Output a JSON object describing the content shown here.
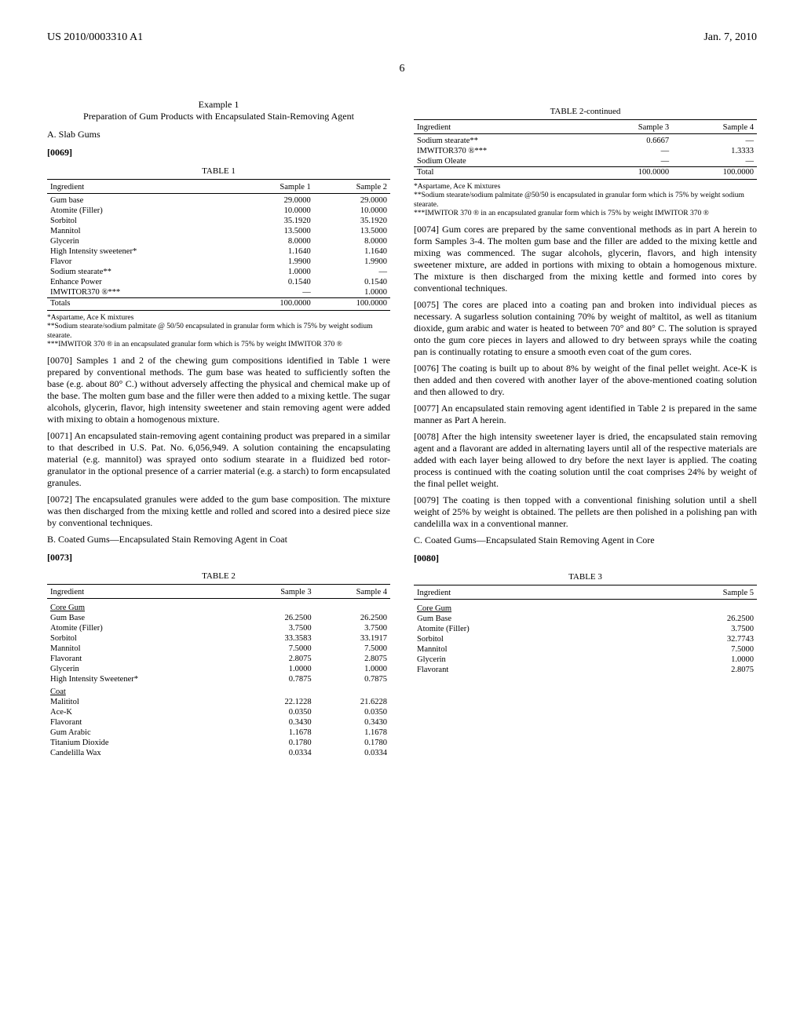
{
  "header": {
    "left": "US 2010/0003310 A1",
    "right": "Jan. 7, 2010"
  },
  "pagenum": "6",
  "col1": {
    "example_num": "Example 1",
    "example_title": "Preparation of Gum Products with Encapsulated Stain-Removing Agent",
    "sectionA": "A. Slab Gums",
    "p0069": "[0069]",
    "table1": {
      "caption": "TABLE 1",
      "head": [
        "Ingredient",
        "Sample 1",
        "Sample 2"
      ],
      "rows": [
        [
          "Gum base",
          "29.0000",
          "29.0000"
        ],
        [
          "Atomite (Filler)",
          "10.0000",
          "10.0000"
        ],
        [
          "Sorbitol",
          "35.1920",
          "35.1920"
        ],
        [
          "Mannitol",
          "13.5000",
          "13.5000"
        ],
        [
          "Glycerin",
          "8.0000",
          "8.0000"
        ],
        [
          "High Intensity sweetener*",
          "1.1640",
          "1.1640"
        ],
        [
          "Flavor",
          "1.9900",
          "1.9900"
        ],
        [
          "Sodium stearate**",
          "1.0000",
          "—"
        ],
        [
          "Enhance Power",
          "0.1540",
          "0.1540"
        ],
        [
          "IMWITOR370 ®***",
          "—",
          "1.0000"
        ]
      ],
      "total": [
        "Totals",
        "100.0000",
        "100.0000"
      ],
      "fn1": "*Aspartame, Ace K mixtures",
      "fn2": "**Sodium stearate/sodium palmitate @ 50/50 encapsulated in granular form which is 75% by weight sodium stearate.",
      "fn3": "***IMWITOR 370 ® in an encapsulated granular form which is 75% by weight IMWITOR 370 ®"
    },
    "p0070": "[0070]   Samples 1 and 2 of the chewing gum compositions identified in Table 1 were prepared by conventional methods. The gum base was heated to sufficiently soften the base (e.g. about 80° C.) without adversely affecting the physical and chemical make up of the base. The molten gum base and the filler were then added to a mixing kettle. The sugar alcohols, glycerin, flavor, high intensity sweetener and stain removing agent were added with mixing to obtain a homogenous mixture.",
    "p0071": "[0071]   An encapsulated stain-removing agent containing product was prepared in a similar to that described in U.S. Pat. No. 6,056,949. A solution containing the encapsulating material (e.g. mannitol) was sprayed onto sodium stearate in a fluidized bed rotor-granulator in the optional presence of a carrier material (e.g. a starch) to form encapsulated granules.",
    "p0072": "[0072]   The encapsulated granules were added to the gum base composition. The mixture was then discharged from the mixing kettle and rolled and scored into a desired piece size by conventional techniques.",
    "sectionB": "B. Coated Gums—Encapsulated Stain Removing Agent in Coat",
    "p0073": "[0073]",
    "table2": {
      "caption": "TABLE 2",
      "head": [
        "Ingredient",
        "Sample 3",
        "Sample 4"
      ],
      "sub1": "Core Gum",
      "rows1": [
        [
          "Gum Base",
          "26.2500",
          "26.2500"
        ],
        [
          "Atomite (Filler)",
          "3.7500",
          "3.7500"
        ],
        [
          "Sorbitol",
          "33.3583",
          "33.1917"
        ],
        [
          "Mannitol",
          "7.5000",
          "7.5000"
        ],
        [
          "Flavorant",
          "2.8075",
          "2.8075"
        ],
        [
          "Glycerin",
          "1.0000",
          "1.0000"
        ],
        [
          "High Intensity Sweetener*",
          "0.7875",
          "0.7875"
        ]
      ],
      "sub2": "Coat",
      "rows2": [
        [
          "Malititol",
          "22.1228",
          "21.6228"
        ],
        [
          "Ace-K",
          "0.0350",
          "0.0350"
        ],
        [
          "Flavorant",
          "0.3430",
          "0.3430"
        ],
        [
          "Gum Arabic",
          "1.1678",
          "1.1678"
        ],
        [
          "Titanium Dioxide",
          "0.1780",
          "0.1780"
        ],
        [
          "Candelilla Wax",
          "0.0334",
          "0.0334"
        ]
      ]
    }
  },
  "col2": {
    "table2c": {
      "caption": "TABLE 2-continued",
      "head": [
        "Ingredient",
        "Sample 3",
        "Sample 4"
      ],
      "rows": [
        [
          "Sodium stearate**",
          "0.6667",
          "—"
        ],
        [
          "IMWITOR370 ®***",
          "—",
          "1.3333"
        ],
        [
          "Sodium Oleate",
          "—",
          "—"
        ]
      ],
      "total": [
        "Total",
        "100.0000",
        "100.0000"
      ],
      "fn1": "*Aspartame, Ace K mixtures",
      "fn2": "**Sodium stearate/sodium palmitate @50/50 is encapsulated in granular form which is 75% by weight sodium stearate.",
      "fn3": "***IMWITOR 370 ® in an encapsulated granular form which is 75% by weight IMWITOR 370 ®"
    },
    "p0074": "[0074]   Gum cores are prepared by the same conventional methods as in part A herein to form Samples 3-4. The molten gum base and the filler are added to the mixing kettle and mixing was commenced. The sugar alcohols, glycerin, flavors, and high intensity sweetener mixture, are added in portions with mixing to obtain a homogenous mixture. The mixture is then discharged from the mixing kettle and formed into cores by conventional techniques.",
    "p0075": "[0075]   The cores are placed into a coating pan and broken into individual pieces as necessary. A sugarless solution containing 70% by weight of maltitol, as well as titanium dioxide, gum arabic and water is heated to between 70° and 80° C. The solution is sprayed onto the gum core pieces in layers and allowed to dry between sprays while the coating pan is continually rotating to ensure a smooth even coat of the gum cores.",
    "p0076": "[0076]   The coating is built up to about 8% by weight of the final pellet weight. Ace-K is then added and then covered with another layer of the above-mentioned coating solution and then allowed to dry.",
    "p0077": "[0077]   An encapsulated stain removing agent identified in Table 2 is prepared in the same manner as Part A herein.",
    "p0078": "[0078]   After the high intensity sweetener layer is dried, the encapsulated stain removing agent and a flavorant are added in alternating layers until all of the respective materials are added with each layer being allowed to dry before the next layer is applied. The coating process is continued with the coating solution until the coat comprises 24% by weight of the final pellet weight.",
    "p0079": "[0079]   The coating is then topped with a conventional finishing solution until a shell weight of 25% by weight is obtained. The pellets are then polished in a polishing pan with candelilla wax in a conventional manner.",
    "sectionC": "C. Coated Gums—Encapsulated Stain Removing Agent in Core",
    "p0080": "[0080]",
    "table3": {
      "caption": "TABLE 3",
      "head": [
        "Ingredient",
        "Sample 5"
      ],
      "sub1": "Core Gum",
      "rows": [
        [
          "Gum Base",
          "26.2500"
        ],
        [
          "Atomite (Filler)",
          "3.7500"
        ],
        [
          "Sorbitol",
          "32.7743"
        ],
        [
          "Mannitol",
          "7.5000"
        ],
        [
          "Glycerin",
          "1.0000"
        ],
        [
          "Flavorant",
          "2.8075"
        ]
      ]
    }
  }
}
